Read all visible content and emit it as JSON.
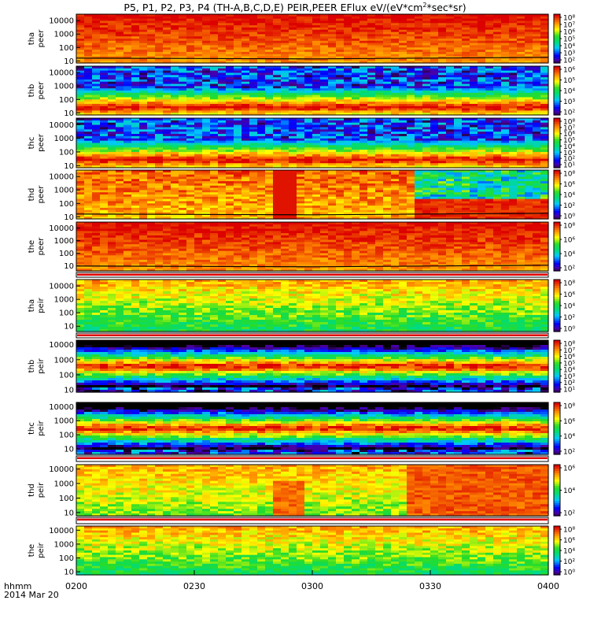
{
  "title_prefix": "P5, P1, P2, P3, P4 (TH-A,B,C,D,E) PEIR,PEER EFlux eV/(eV*cm",
  "title_sup": "2",
  "title_suffix": "*sec*sr)",
  "time_axis": {
    "label_lines": [
      "hhmm",
      "2014 Mar 20"
    ],
    "ticks": [
      "0200",
      "0230",
      "0300",
      "0330",
      "0400"
    ]
  },
  "chart_data": [
    {
      "type": "heatmap",
      "ylabel": [
        "tha",
        "peer"
      ],
      "yscale": "log",
      "ylim": [
        7,
        30000
      ],
      "yticks": [
        "10000",
        "1000",
        "100",
        "10"
      ],
      "colorscale": "rainbow",
      "cbar_ticks": [
        "10⁸",
        "10⁷",
        "10⁶",
        "10⁵",
        "10⁴",
        "10³",
        "10²"
      ],
      "cbar_range_log": [
        2,
        8
      ],
      "profile": "hot",
      "trace": true
    },
    {
      "type": "heatmap",
      "ylabel": [
        "thb",
        "peer"
      ],
      "yscale": "log",
      "ylim": [
        7,
        30000
      ],
      "yticks": [
        "10000",
        "1000",
        "100",
        "10"
      ],
      "colorscale": "rainbow",
      "cbar_ticks": [
        "10⁶",
        "10⁵",
        "10⁴",
        "10³",
        "10²"
      ],
      "cbar_range_log": [
        1,
        7
      ],
      "profile": "peak_low",
      "trace": false
    },
    {
      "type": "heatmap",
      "ylabel": [
        "thc",
        "peer"
      ],
      "yscale": "log",
      "ylim": [
        7,
        30000
      ],
      "yticks": [
        "10000",
        "1000",
        "100",
        "10"
      ],
      "colorscale": "rainbow",
      "cbar_ticks": [
        "10⁸",
        "10⁷",
        "10⁶",
        "10⁵",
        "10⁴",
        "10³",
        "10²",
        "10¹"
      ],
      "cbar_range_log": [
        1,
        8
      ],
      "profile": "peak_low",
      "trace": false
    },
    {
      "type": "heatmap",
      "ylabel": [
        "thd",
        "peer"
      ],
      "yscale": "log",
      "ylim": [
        7,
        30000
      ],
      "yticks": [
        "10000",
        "1000",
        "100",
        "10"
      ],
      "colorscale": "rainbow",
      "cbar_ticks": [
        "10⁸",
        "10⁶",
        "10⁴",
        "10²",
        "10⁰"
      ],
      "cbar_range_log": [
        0,
        8
      ],
      "profile": "thd",
      "trace": true
    },
    {
      "type": "heatmap",
      "ylabel": [
        "the",
        "peer"
      ],
      "yscale": "log",
      "ylim": [
        4,
        30000
      ],
      "yticks": [
        "10000",
        "1000",
        "100",
        "10"
      ],
      "colorscale": "rainbow",
      "cbar_ticks": [
        "10⁸",
        "10⁶",
        "10⁴",
        "10²"
      ],
      "cbar_range_log": [
        1,
        8
      ],
      "profile": "hot",
      "trace": true
    },
    {
      "type": "heatmap",
      "ylabel": [
        "tha",
        "peir"
      ],
      "yscale": "log",
      "ylim": [
        4,
        30000
      ],
      "yticks": [
        "10000",
        "1000",
        "100",
        "10"
      ],
      "colorscale": "rainbow",
      "cbar_ticks": [
        "10⁸",
        "10⁶",
        "10⁴",
        "10²",
        "10⁰"
      ],
      "cbar_range_log": [
        0,
        8
      ],
      "profile": "ion",
      "trace": false
    },
    {
      "type": "heatmap",
      "ylabel": [
        "thb",
        "peir"
      ],
      "yscale": "log",
      "ylim": [
        7,
        20000
      ],
      "yticks": [
        "10000",
        "1000",
        "100",
        "10"
      ],
      "colorscale": "rainbow",
      "cbar_ticks": [
        "10⁸",
        "10⁷",
        "10⁶",
        "10⁵",
        "10⁴",
        "10³",
        "10²",
        "10¹"
      ],
      "cbar_range_log": [
        1,
        8
      ],
      "profile": "peak_mid",
      "trace": false
    },
    {
      "type": "heatmap",
      "ylabel": [
        "thc",
        "peir"
      ],
      "yscale": "log",
      "ylim": [
        4,
        20000
      ],
      "yticks": [
        "10000",
        "1000",
        "100",
        "10"
      ],
      "colorscale": "rainbow",
      "cbar_ticks": [
        "10⁸",
        "10⁶",
        "10⁴",
        "10²"
      ],
      "cbar_range_log": [
        1,
        8
      ],
      "profile": "peak_mid",
      "trace": false
    },
    {
      "type": "heatmap",
      "ylabel": [
        "thd",
        "peir"
      ],
      "yscale": "log",
      "ylim": [
        6,
        20000
      ],
      "yticks": [
        "10000",
        "1000",
        "100",
        "10"
      ],
      "colorscale": "rainbow",
      "cbar_ticks": [
        "10⁶",
        "10⁴",
        "10²"
      ],
      "cbar_range_log": [
        0,
        8
      ],
      "profile": "thd_ion",
      "trace": false
    },
    {
      "type": "heatmap",
      "ylabel": [
        "the",
        "peir"
      ],
      "yscale": "log",
      "ylim": [
        6,
        20000
      ],
      "yticks": [
        "10000",
        "1000",
        "100",
        "10"
      ],
      "colorscale": "rainbow",
      "cbar_ticks": [
        "10⁸",
        "10⁶",
        "10⁴",
        "10²",
        "10⁰"
      ],
      "cbar_range_log": [
        0,
        8
      ],
      "profile": "ion",
      "trace": false
    }
  ]
}
